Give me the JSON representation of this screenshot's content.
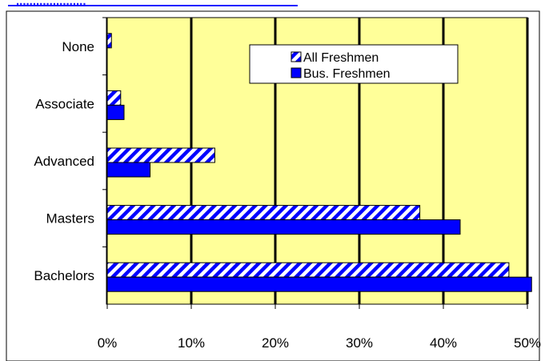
{
  "header": {
    "partial_link_text": "....................."
  },
  "colors": {
    "plot_background": "#ffff99",
    "bus_freshmen_fill": "#0000ff",
    "all_freshmen_stripe": "#0000ff",
    "gridline": "#000000",
    "header_link": "#1a1aff"
  },
  "chart_data": {
    "type": "bar",
    "orientation": "horizontal",
    "categories": [
      "None",
      "Associate",
      "Advanced",
      "Masters",
      "Bachelors"
    ],
    "series": [
      {
        "name": "All Freshmen",
        "values": [
          0.5,
          1.6,
          12.8,
          37.2,
          47.8
        ],
        "pattern": "diagonal-stripe"
      },
      {
        "name": "Bus. Freshmen",
        "values": [
          0.0,
          2.0,
          5.1,
          42.0,
          50.5
        ],
        "pattern": "solid"
      }
    ],
    "x_ticks": [
      "0%",
      "10%",
      "20%",
      "30%",
      "40%",
      "50%"
    ],
    "xlim": [
      0,
      50
    ],
    "grid": "vertical",
    "legend_position": "top-right"
  }
}
